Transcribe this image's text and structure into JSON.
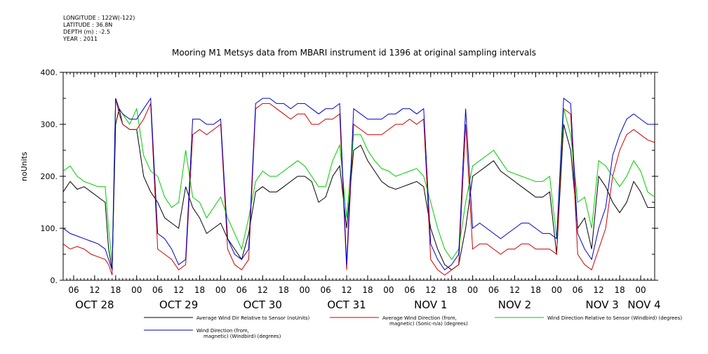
{
  "header": {
    "longitude": "LONGITUDE : 122W(-122)",
    "latitude": "LATITUDE : 36.8N",
    "depth": "DEPTH (m) : -2.5",
    "year": "YEAR : 2011"
  },
  "chart_data": {
    "type": "line",
    "title": "Mooring M1 Metsys data from MBARI instrument id 1396 at original sampling intervals",
    "ylabel": "noUnits",
    "ylim": [
      0,
      400
    ],
    "yticks": [
      0,
      100,
      200,
      300,
      400
    ],
    "x_unit": "hours since Oct 28 00:00, 2011",
    "xlim": [
      3,
      172
    ],
    "hour_tick_labels": [
      "06",
      "12",
      "18",
      "00",
      "06",
      "12",
      "18",
      "00",
      "06",
      "12",
      "18",
      "00",
      "06",
      "12",
      "18",
      "00",
      "06",
      "12",
      "18",
      "00",
      "06",
      "12",
      "18",
      "00",
      "06",
      "12",
      "18",
      "00",
      "06",
      "12",
      "18",
      "00",
      "06"
    ],
    "day_labels": [
      {
        "label": "OCT 28",
        "x": 12
      },
      {
        "label": "OCT 29",
        "x": 36
      },
      {
        "label": "OCT 30",
        "x": 60
      },
      {
        "label": "OCT 31",
        "x": 84
      },
      {
        "label": "NOV  1",
        "x": 108
      },
      {
        "label": "NOV  2",
        "x": 132
      },
      {
        "label": "NOV  3",
        "x": 157
      },
      {
        "label": "NOV 4",
        "x": 169
      }
    ],
    "series": [
      {
        "name": "Average Wind Dir Relative to Sensor (noUnits)",
        "color": "#000000",
        "x": [
          3,
          5,
          7,
          9,
          11,
          13,
          15,
          16,
          17,
          18,
          19,
          20,
          22,
          24,
          26,
          28,
          30,
          32,
          34,
          36,
          38,
          40,
          42,
          44,
          46,
          48,
          50,
          52,
          54,
          56,
          58,
          60,
          62,
          64,
          66,
          68,
          70,
          72,
          74,
          76,
          78,
          80,
          82,
          84,
          86,
          88,
          90,
          92,
          94,
          96,
          98,
          100,
          102,
          104,
          106,
          108,
          110,
          112,
          114,
          116,
          118,
          120,
          122,
          124,
          126,
          128,
          130,
          132,
          134,
          136,
          138,
          140,
          142,
          144,
          146,
          148,
          150,
          152,
          154,
          156,
          158,
          160,
          162,
          164,
          166,
          168,
          170,
          172
        ],
        "y": [
          170,
          190,
          175,
          180,
          170,
          160,
          150,
          60,
          20,
          300,
          330,
          300,
          290,
          290,
          200,
          170,
          150,
          120,
          110,
          100,
          180,
          140,
          120,
          90,
          100,
          110,
          80,
          60,
          40,
          90,
          170,
          180,
          170,
          170,
          180,
          190,
          200,
          200,
          190,
          150,
          160,
          200,
          220,
          100,
          250,
          260,
          230,
          210,
          190,
          180,
          175,
          180,
          185,
          190,
          180,
          100,
          60,
          30,
          20,
          30,
          100,
          200,
          210,
          220,
          230,
          210,
          200,
          190,
          180,
          170,
          160,
          160,
          170,
          50,
          300,
          250,
          100,
          120,
          60,
          200,
          180,
          150,
          130,
          150,
          190,
          170,
          140,
          140
        ]
      },
      {
        "name": "Average Wind Direction (from, magnetic) (Sonic-n/a) (degrees)",
        "color": "#cc0000",
        "x": [
          3,
          5,
          7,
          9,
          11,
          13,
          15,
          16,
          17,
          18,
          19,
          20,
          22,
          24,
          26,
          28,
          30,
          32,
          34,
          36,
          38,
          40,
          42,
          44,
          46,
          48,
          50,
          52,
          54,
          56,
          58,
          60,
          62,
          64,
          66,
          68,
          70,
          72,
          74,
          76,
          78,
          80,
          82,
          84,
          86,
          88,
          90,
          92,
          94,
          96,
          98,
          100,
          102,
          104,
          106,
          108,
          110,
          112,
          114,
          116,
          118,
          120,
          122,
          124,
          126,
          128,
          130,
          132,
          134,
          136,
          138,
          140,
          142,
          144,
          146,
          148,
          150,
          152,
          154,
          156,
          158,
          160,
          162,
          164,
          166,
          168,
          170,
          172
        ],
        "y": [
          70,
          60,
          65,
          60,
          50,
          45,
          40,
          30,
          10,
          350,
          320,
          300,
          290,
          290,
          310,
          340,
          60,
          50,
          40,
          20,
          30,
          280,
          290,
          280,
          290,
          300,
          60,
          30,
          20,
          40,
          330,
          340,
          340,
          330,
          320,
          310,
          320,
          320,
          300,
          300,
          310,
          310,
          320,
          20,
          300,
          290,
          280,
          280,
          280,
          290,
          300,
          300,
          310,
          300,
          310,
          40,
          20,
          10,
          20,
          30,
          300,
          60,
          70,
          70,
          60,
          50,
          60,
          60,
          70,
          70,
          60,
          60,
          60,
          50,
          330,
          320,
          50,
          30,
          20,
          60,
          100,
          200,
          250,
          280,
          290,
          280,
          270,
          265
        ]
      },
      {
        "name": "Wind Direction Relative to Sensor (Windbird) (degrees)",
        "color": "#00cc00",
        "x": [
          3,
          5,
          7,
          9,
          11,
          13,
          15,
          16,
          17,
          18,
          19,
          20,
          22,
          24,
          26,
          28,
          30,
          32,
          34,
          36,
          38,
          40,
          42,
          44,
          46,
          48,
          50,
          52,
          54,
          56,
          58,
          60,
          62,
          64,
          66,
          68,
          70,
          72,
          74,
          76,
          78,
          80,
          82,
          84,
          86,
          88,
          90,
          92,
          94,
          96,
          98,
          100,
          102,
          104,
          106,
          108,
          110,
          112,
          114,
          116,
          118,
          120,
          122,
          124,
          126,
          128,
          130,
          132,
          134,
          136,
          138,
          140,
          142,
          144,
          146,
          148,
          150,
          152,
          154,
          156,
          158,
          160,
          162,
          164,
          166,
          168,
          170,
          172
        ],
        "y": [
          210,
          220,
          200,
          190,
          185,
          180,
          180,
          100,
          30,
          350,
          330,
          320,
          300,
          330,
          240,
          210,
          200,
          160,
          140,
          150,
          250,
          160,
          150,
          120,
          140,
          160,
          120,
          90,
          60,
          120,
          190,
          210,
          200,
          200,
          210,
          220,
          230,
          220,
          200,
          180,
          180,
          230,
          260,
          120,
          280,
          280,
          250,
          230,
          215,
          210,
          200,
          205,
          210,
          215,
          200,
          150,
          100,
          60,
          40,
          60,
          150,
          220,
          230,
          240,
          250,
          230,
          210,
          205,
          200,
          195,
          190,
          190,
          200,
          80,
          330,
          280,
          150,
          160,
          100,
          230,
          220,
          200,
          180,
          200,
          230,
          210,
          170,
          160
        ]
      },
      {
        "name": "Wind Direction (from, magnetic) (Windbird) (degrees)",
        "color": "#0000cc",
        "x": [
          3,
          5,
          7,
          9,
          11,
          13,
          15,
          16,
          17,
          18,
          19,
          20,
          22,
          24,
          26,
          28,
          30,
          32,
          34,
          36,
          38,
          40,
          42,
          44,
          46,
          48,
          50,
          52,
          54,
          56,
          58,
          60,
          62,
          64,
          66,
          68,
          70,
          72,
          74,
          76,
          78,
          80,
          82,
          84,
          86,
          88,
          90,
          92,
          94,
          96,
          98,
          100,
          102,
          104,
          106,
          108,
          110,
          112,
          114,
          116,
          118,
          120,
          122,
          124,
          126,
          128,
          130,
          132,
          134,
          136,
          138,
          140,
          142,
          144,
          146,
          148,
          150,
          152,
          154,
          156,
          158,
          160,
          162,
          164,
          166,
          168,
          170,
          172
        ],
        "y": [
          100,
          90,
          85,
          80,
          75,
          70,
          60,
          40,
          20,
          350,
          330,
          320,
          310,
          310,
          330,
          350,
          90,
          80,
          60,
          30,
          40,
          310,
          310,
          300,
          300,
          310,
          80,
          50,
          40,
          60,
          340,
          350,
          350,
          340,
          340,
          330,
          340,
          340,
          330,
          320,
          330,
          330,
          340,
          30,
          330,
          320,
          310,
          310,
          310,
          320,
          320,
          330,
          330,
          320,
          330,
          70,
          40,
          20,
          30,
          50,
          330,
          100,
          110,
          100,
          90,
          80,
          90,
          100,
          110,
          110,
          100,
          90,
          90,
          80,
          350,
          340,
          90,
          60,
          40,
          100,
          140,
          240,
          280,
          310,
          320,
          310,
          300,
          300
        ]
      }
    ]
  },
  "legend": {
    "entries": [
      {
        "text": "Average Wind Dir Relative to Sensor (noUnits)",
        "color": "#000000"
      },
      {
        "text": "Average Wind Direction (from,\nmagnetic) (Sonic-n/a) (degrees)",
        "color": "#cc0000"
      },
      {
        "text": "Wind Direction Relative to Sensor (Windbird) (degrees)",
        "color": "#00cc00"
      },
      {
        "text": "Wind Direction (from,\nmagnetic) (Windbird) (degrees)",
        "color": "#0000cc"
      }
    ]
  }
}
